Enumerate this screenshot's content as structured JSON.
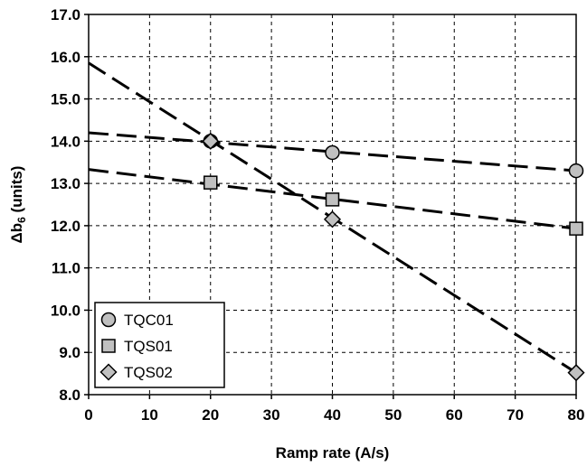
{
  "chart_data": {
    "type": "scatter",
    "title": "",
    "xlabel": "Ramp rate (A/s)",
    "ylabel_main": "Δb",
    "ylabel_sub": "6",
    "ylabel_unit": " (units)",
    "xlim": [
      0,
      80
    ],
    "ylim": [
      8.0,
      17.0
    ],
    "x_ticks": [
      "0",
      "10",
      "20",
      "30",
      "40",
      "50",
      "60",
      "70",
      "80"
    ],
    "y_ticks": [
      "8.0",
      "9.0",
      "10.0",
      "11.0",
      "12.0",
      "13.0",
      "14.0",
      "15.0",
      "16.0",
      "17.0"
    ],
    "grid": true,
    "legend_position": "bottom-left",
    "series": [
      {
        "name": "TQC01",
        "marker": "circle",
        "x": [
          20,
          40,
          80
        ],
        "y": [
          14.0,
          13.73,
          13.3
        ],
        "fit": {
          "x": [
            0,
            80
          ],
          "y": [
            14.2,
            13.3
          ]
        }
      },
      {
        "name": "TQS01",
        "marker": "square",
        "x": [
          20,
          40,
          80
        ],
        "y": [
          13.02,
          12.62,
          11.93
        ],
        "fit": {
          "x": [
            0,
            80
          ],
          "y": [
            13.33,
            11.93
          ]
        }
      },
      {
        "name": "TQS02",
        "marker": "diamond",
        "x": [
          20,
          40,
          80
        ],
        "y": [
          14.0,
          12.15,
          8.52
        ],
        "fit": {
          "x": [
            0,
            80
          ],
          "y": [
            15.85,
            8.52
          ]
        }
      }
    ],
    "colors": {
      "marker_fill": "#c0c0c0",
      "line": "#000000",
      "grid": "#000000",
      "background": "#ffffff"
    }
  }
}
